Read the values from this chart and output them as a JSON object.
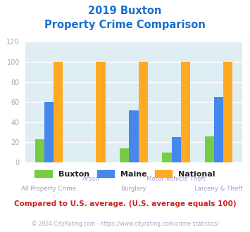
{
  "title_line1": "2019 Buxton",
  "title_line2": "Property Crime Comparison",
  "title_color": "#1a6fcc",
  "categories": [
    "All Property Crime",
    "Arson",
    "Burglary",
    "Motor Vehicle Theft",
    "Larceny & Theft"
  ],
  "buxton": [
    23,
    0,
    14,
    10,
    26
  ],
  "maine": [
    60,
    0,
    52,
    25,
    65
  ],
  "national": [
    100,
    100,
    100,
    100,
    100
  ],
  "buxton_color": "#77cc44",
  "maine_color": "#4488ee",
  "national_color": "#ffaa22",
  "ylim": [
    0,
    120
  ],
  "yticks": [
    0,
    20,
    40,
    60,
    80,
    100,
    120
  ],
  "bar_width": 0.22,
  "bg_color": "#deeef2",
  "grid_color": "#ffffff",
  "legend_labels": [
    "Buxton",
    "Maine",
    "National"
  ],
  "footer_text": "Compared to U.S. average. (U.S. average equals 100)",
  "footer_color": "#cc2222",
  "copyright_text": "© 2024 CityRating.com - https://www.cityrating.com/crime-statistics/",
  "copyright_color": "#aaaacc",
  "xlabel_color": "#aa99cc",
  "tick_color": "#aaaaaa",
  "labels_top": [
    "",
    "Arson",
    "",
    "Motor Vehicle Theft",
    ""
  ],
  "labels_bot": [
    "All Property Crime",
    "",
    "Burglary",
    "",
    "Larceny & Theft"
  ]
}
